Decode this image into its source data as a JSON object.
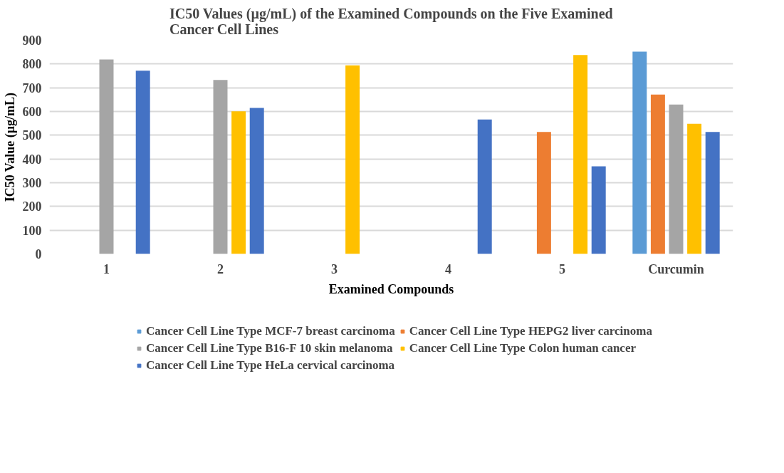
{
  "chart_data": {
    "type": "bar",
    "title": "IC50 Values (µg/mL) of the Examined Compounds on the Five Examined Cancer Cell Lines",
    "xlabel": "Examined Compounds",
    "ylabel": "IC50 Value (µg/mL)",
    "categories": [
      "1",
      "2",
      "3",
      "4",
      "5",
      "Curcumin"
    ],
    "series": [
      {
        "name": "Cancer Cell Line Type MCF-7 breast carcinoma",
        "color": "#5b9bd5",
        "values": [
          null,
          null,
          null,
          null,
          null,
          852
        ]
      },
      {
        "name": "Cancer Cell Line Type HEPG2 liver carcinoma",
        "color": "#ed7d31",
        "values": [
          null,
          null,
          null,
          null,
          514,
          671
        ]
      },
      {
        "name": "Cancer Cell Line Type B16-F 10 skin melanoma",
        "color": "#a5a5a5",
        "values": [
          819,
          733,
          null,
          null,
          null,
          629
        ]
      },
      {
        "name": "Cancer Cell Line Type Colon human cancer",
        "color": "#ffc000",
        "values": [
          null,
          601,
          794,
          null,
          838,
          548
        ]
      },
      {
        "name": "Cancer Cell Line Type HeLa cervical carcinoma",
        "color": "#4472c4",
        "values": [
          772,
          615,
          null,
          566,
          369,
          514
        ]
      }
    ],
    "ylim": [
      0,
      900
    ],
    "yticks": [
      0,
      100,
      200,
      300,
      400,
      500,
      600,
      700,
      800,
      900
    ],
    "grid": "y",
    "legend": "bottom"
  }
}
